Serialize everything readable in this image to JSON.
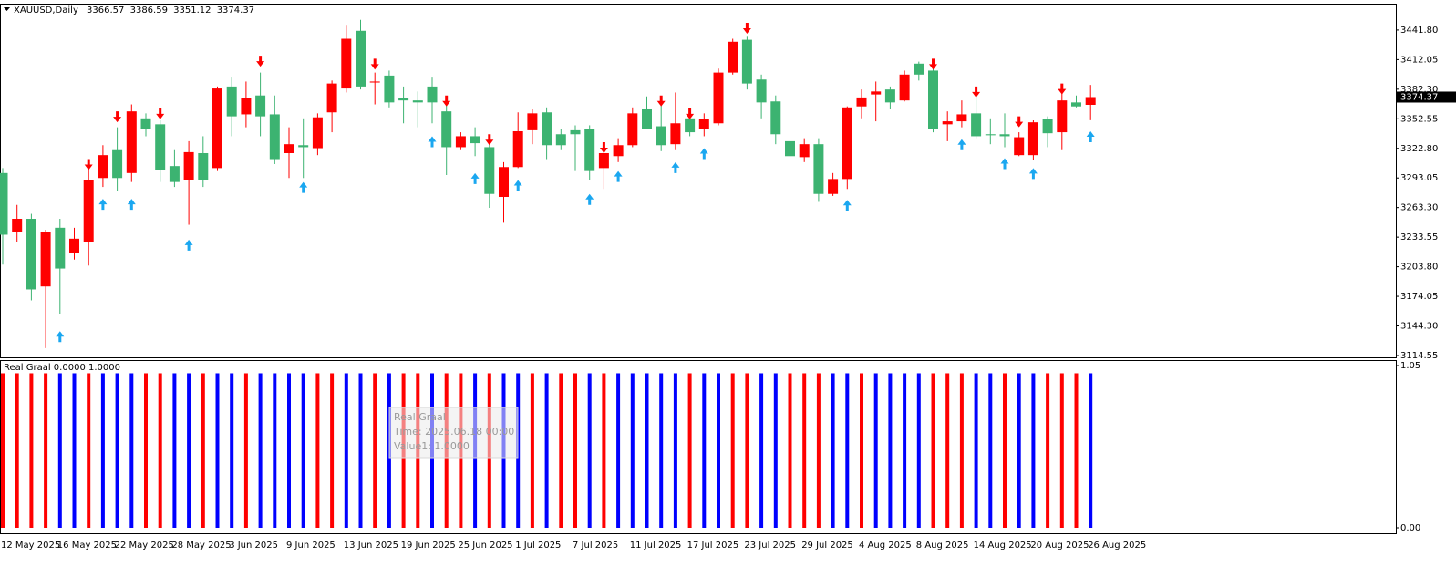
{
  "chart_data": [
    {
      "type": "candlestick",
      "symbol": "XAUUSD,Daily",
      "x": [
        "12 May 2025",
        null,
        null,
        null,
        "16 May 2025",
        null,
        null,
        null,
        "22 May 2025",
        null,
        null,
        null,
        "28 May 2025",
        null,
        null,
        null,
        "3 Jun 2025",
        null,
        null,
        null,
        "9 Jun 2025",
        null,
        null,
        null,
        "13 Jun 2025",
        null,
        null,
        null,
        "19 Jun 2025",
        null,
        null,
        null,
        "25 Jun 2025",
        null,
        null,
        null,
        "1 Jul 2025",
        null,
        null,
        null,
        "7 Jul 2025",
        null,
        null,
        null,
        "11 Jul 2025",
        null,
        null,
        null,
        "17 Jul 2025",
        null,
        null,
        null,
        "23 Jul 2025",
        null,
        null,
        null,
        "29 Jul 2025",
        null,
        null,
        null,
        "4 Aug 2025",
        null,
        null,
        null,
        "8 Aug 2025",
        null,
        null,
        null,
        "14 Aug 2025",
        null,
        null,
        null,
        "20 Aug 2025",
        null,
        null,
        null,
        "26 Aug 2025"
      ],
      "open": [
        3298,
        3239,
        3252,
        3184,
        3243,
        3218,
        3229,
        3293,
        3321,
        3298,
        3353,
        3347,
        3305,
        3291,
        3318,
        3303,
        3385,
        3357,
        3376,
        3357,
        3318,
        3326,
        3323,
        3359,
        3383,
        3441,
        3389,
        3396,
        3373,
        3371,
        3385,
        3360,
        3324,
        3335,
        3324,
        3274,
        3304,
        3341,
        3359,
        3337,
        3341,
        3342,
        3303,
        3315,
        3326,
        3362,
        3345,
        3327,
        3353,
        3342,
        3348,
        3399,
        3432,
        3392,
        3370,
        3330,
        3314,
        3327,
        3277,
        3292,
        3365,
        3377,
        3382,
        3371,
        3408,
        3401,
        3347,
        3350,
        3358,
        3337,
        3337,
        3316,
        3316,
        3352,
        3339,
        3369,
        3366.57
      ],
      "high": [
        3303,
        3266,
        3257,
        3241,
        3252,
        3243,
        3303,
        3326,
        3344,
        3367,
        3358,
        3351,
        3321,
        3330,
        3335,
        3385,
        3394,
        3390,
        3399,
        3376,
        3344,
        3353,
        3358,
        3391,
        3447,
        3452,
        3399,
        3401,
        3385,
        3380,
        3394,
        3367,
        3339,
        3344,
        3330,
        3309,
        3359,
        3362,
        3364,
        3342,
        3346,
        3346,
        3326,
        3333,
        3364,
        3375,
        3375,
        3379,
        3360,
        3358,
        3403,
        3433,
        3435,
        3397,
        3376,
        3346,
        3333,
        3333,
        3298,
        3365,
        3382,
        3390,
        3385,
        3401,
        3410,
        3406,
        3360,
        3371,
        3376,
        3353,
        3358,
        3339,
        3351,
        3355,
        3382,
        3376,
        3386.59
      ],
      "low": [
        3206,
        3229,
        3170,
        3122,
        3156,
        3211,
        3205,
        3284,
        3280,
        3289,
        3335,
        3289,
        3284,
        3246,
        3284,
        3300,
        3335,
        3344,
        3335,
        3307,
        3293,
        3293,
        3316,
        3339,
        3379,
        3382,
        3367,
        3364,
        3348,
        3344,
        3348,
        3296,
        3321,
        3315,
        3263,
        3248,
        3303,
        3327,
        3312,
        3321,
        3300,
        3291,
        3282,
        3309,
        3324,
        3342,
        3320,
        3321,
        3335,
        3335,
        3346,
        3397,
        3382,
        3353,
        3327,
        3312,
        3309,
        3269,
        3275,
        3282,
        3353,
        3350,
        3362,
        3370,
        3391,
        3339,
        3330,
        3344,
        3333,
        3327,
        3324,
        3315,
        3311,
        3324,
        3321,
        3364,
        3351.12
      ],
      "close": [
        3236,
        3252,
        3181,
        3239,
        3202,
        3232,
        3291,
        3316,
        3293,
        3360,
        3342,
        3301,
        3289,
        3319,
        3291,
        3383,
        3355,
        3373,
        3355,
        3312,
        3327,
        3324,
        3354,
        3388,
        3433,
        3385,
        3390,
        3369,
        3371,
        3369,
        3369,
        3324,
        3335,
        3328,
        3277,
        3304,
        3340,
        3358,
        3326,
        3326,
        3337,
        3300,
        3318,
        3326,
        3358,
        3342,
        3326,
        3348,
        3339,
        3352,
        3399,
        3430,
        3388,
        3369,
        3337,
        3315,
        3327,
        3277,
        3292,
        3364,
        3374,
        3380,
        3369,
        3397,
        3397,
        3342,
        3350,
        3357,
        3335,
        3336,
        3335,
        3334,
        3349,
        3338,
        3371,
        3365,
        3374.37
      ],
      "down_arrows": [
        null,
        null,
        null,
        null,
        null,
        null,
        3301,
        null,
        3349,
        null,
        null,
        3352,
        null,
        null,
        null,
        null,
        null,
        null,
        3405,
        null,
        null,
        null,
        null,
        null,
        null,
        null,
        3402,
        null,
        null,
        null,
        null,
        3365,
        null,
        null,
        3326,
        null,
        null,
        null,
        null,
        null,
        null,
        null,
        3318,
        null,
        null,
        null,
        3365,
        null,
        3352,
        null,
        null,
        null,
        3438,
        null,
        null,
        null,
        null,
        null,
        null,
        null,
        null,
        null,
        null,
        null,
        null,
        3402,
        null,
        null,
        3374,
        null,
        null,
        3344,
        null,
        null,
        3377,
        null,
        null
      ],
      "up_arrows": [
        null,
        null,
        null,
        null,
        3139,
        null,
        null,
        3272,
        null,
        3272,
        null,
        null,
        null,
        3231,
        null,
        null,
        null,
        null,
        null,
        null,
        null,
        3289,
        null,
        null,
        null,
        null,
        null,
        null,
        null,
        null,
        3335,
        null,
        null,
        3298,
        null,
        null,
        3291,
        null,
        null,
        null,
        null,
        3277,
        null,
        3300,
        null,
        null,
        null,
        3309,
        null,
        3323,
        null,
        null,
        null,
        null,
        null,
        null,
        null,
        null,
        null,
        3271,
        null,
        null,
        null,
        null,
        null,
        null,
        null,
        3332,
        null,
        null,
        3313,
        null,
        3303,
        null,
        null,
        null,
        3340
      ],
      "bull_color": "#ff0000",
      "bear_color": "#3cb371",
      "down_arrow_color": "#ff0000",
      "up_arrow_color": "#1aa7f0",
      "ylim": [
        3112.7,
        3468.3
      ],
      "yticks": [
        {
          "value": 3441.8,
          "label": "3441.80"
        },
        3412.05,
        {
          "value": 3382.3,
          "label": "3382.30"
        },
        3352.55,
        {
          "value": 3322.8,
          "label": "3322.80"
        },
        3293.05,
        {
          "value": 3263.3,
          "label": "3263.30"
        },
        3233.55,
        {
          "value": 3203.8,
          "label": "3203.80"
        },
        3174.05,
        {
          "value": 3144.3,
          "label": "3144.30"
        },
        3114.55
      ]
    },
    {
      "type": "bar",
      "label": "Real Graal 0.0000 1.0000",
      "values": [
        1,
        1,
        1,
        1,
        1,
        1,
        1,
        1,
        1,
        1,
        1,
        1,
        1,
        1,
        1,
        1,
        1,
        1,
        1,
        1,
        1,
        1,
        1,
        1,
        1,
        1,
        1,
        1,
        1,
        1,
        1,
        1,
        1,
        1,
        1,
        1,
        1,
        1,
        1,
        1,
        1,
        1,
        1,
        1,
        1,
        1,
        1,
        1,
        1,
        1,
        1,
        1,
        1,
        1,
        1,
        1,
        1,
        1,
        1,
        1,
        1,
        1,
        1,
        1,
        1,
        1,
        1,
        1,
        1,
        1,
        1,
        1,
        1,
        1,
        1,
        1,
        1
      ],
      "colors": [
        "#ff0000",
        "#ff0000",
        "#ff0000",
        "#ff0000",
        "#0000ff",
        "#0000ff",
        "#ff0000",
        "#0000ff",
        "#0000ff",
        "#0000ff",
        "#ff0000",
        "#ff0000",
        "#0000ff",
        "#0000ff",
        "#ff0000",
        "#0000ff",
        "#0000ff",
        "#ff0000",
        "#0000ff",
        "#0000ff",
        "#0000ff",
        "#0000ff",
        "#ff0000",
        "#ff0000",
        "#0000ff",
        "#0000ff",
        "#ff0000",
        "#0000ff",
        "#ff0000",
        "#ff0000",
        "#0000ff",
        "#ff0000",
        "#ff0000",
        "#0000ff",
        "#ff0000",
        "#0000ff",
        "#0000ff",
        "#ff0000",
        "#0000ff",
        "#ff0000",
        "#ff0000",
        "#0000ff",
        "#ff0000",
        "#0000ff",
        "#0000ff",
        "#0000ff",
        "#0000ff",
        "#0000ff",
        "#ff0000",
        "#0000ff",
        "#0000ff",
        "#ff0000",
        "#ff0000",
        "#0000ff",
        "#0000ff",
        "#ff0000",
        "#ff0000",
        "#ff0000",
        "#0000ff",
        "#0000ff",
        "#ff0000",
        "#0000ff",
        "#0000ff",
        "#0000ff",
        "#0000ff",
        "#ff0000",
        "#ff0000",
        "#ff0000",
        "#0000ff",
        "#0000ff",
        "#ff0000",
        "#0000ff",
        "#0000ff",
        "#ff0000",
        "#ff0000",
        "#ff0000",
        "#0000ff"
      ],
      "ylim": [
        0,
        1.05
      ],
      "yticks": [
        1.05,
        {
          "value": 0,
          "label": "0.00"
        }
      ],
      "tooltip": {
        "title": "Real Graal",
        "time": "Time: 2025.06.18 00:00",
        "value": "Value1: 1.0000"
      }
    }
  ]
}
